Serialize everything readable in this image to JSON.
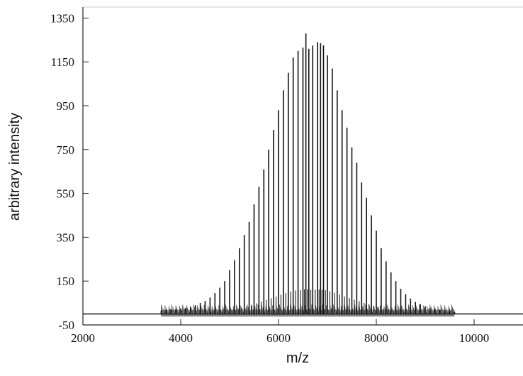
{
  "chart_data": {
    "type": "line",
    "title": "",
    "xlabel": "m/z",
    "ylabel": "arbitrary intensity",
    "xlim": [
      2000,
      11000
    ],
    "ylim": [
      -50,
      1400
    ],
    "x_ticks": [
      2000,
      4000,
      6000,
      8000,
      10000
    ],
    "x_tick_labels": [
      "2000",
      "4000",
      "6000",
      "8000",
      "10000"
    ],
    "y_ticks": [
      -50,
      150,
      350,
      550,
      750,
      950,
      1150,
      1350
    ],
    "y_tick_labels": [
      "-50",
      "150",
      "350",
      "550",
      "750",
      "950",
      "1150",
      "1350"
    ],
    "grid": false,
    "baseline": 0,
    "series": [
      {
        "x": [
          3600,
          3700,
          3800,
          3900,
          4000,
          4100,
          4200,
          4300,
          4400,
          4500,
          4600,
          4700,
          4800,
          4900,
          5000,
          5100,
          5200,
          5300,
          5400,
          5500,
          5600,
          5700,
          5800,
          5900,
          6000,
          6100,
          6200,
          6300,
          6400,
          6500,
          6560,
          6620,
          6700,
          6800,
          6860,
          6920,
          7000,
          7100,
          7200,
          7300,
          7400,
          7500,
          7600,
          7700,
          7800,
          7900,
          8000,
          8100,
          8200,
          8300,
          8400,
          8500,
          8600,
          8700,
          8800,
          8900,
          9000,
          9100,
          9200,
          9300,
          9400,
          9500,
          9600
        ],
        "y": [
          15,
          18,
          20,
          22,
          25,
          28,
          32,
          40,
          50,
          60,
          75,
          95,
          120,
          150,
          200,
          245,
          300,
          360,
          420,
          500,
          580,
          660,
          750,
          840,
          930,
          1020,
          1100,
          1170,
          1200,
          1215,
          1280,
          1210,
          1225,
          1240,
          1235,
          1225,
          1180,
          1120,
          1020,
          930,
          850,
          760,
          690,
          600,
          530,
          450,
          380,
          300,
          240,
          190,
          150,
          115,
          90,
          70,
          55,
          45,
          35,
          28,
          22,
          18,
          15,
          12,
          10
        ]
      }
    ]
  }
}
